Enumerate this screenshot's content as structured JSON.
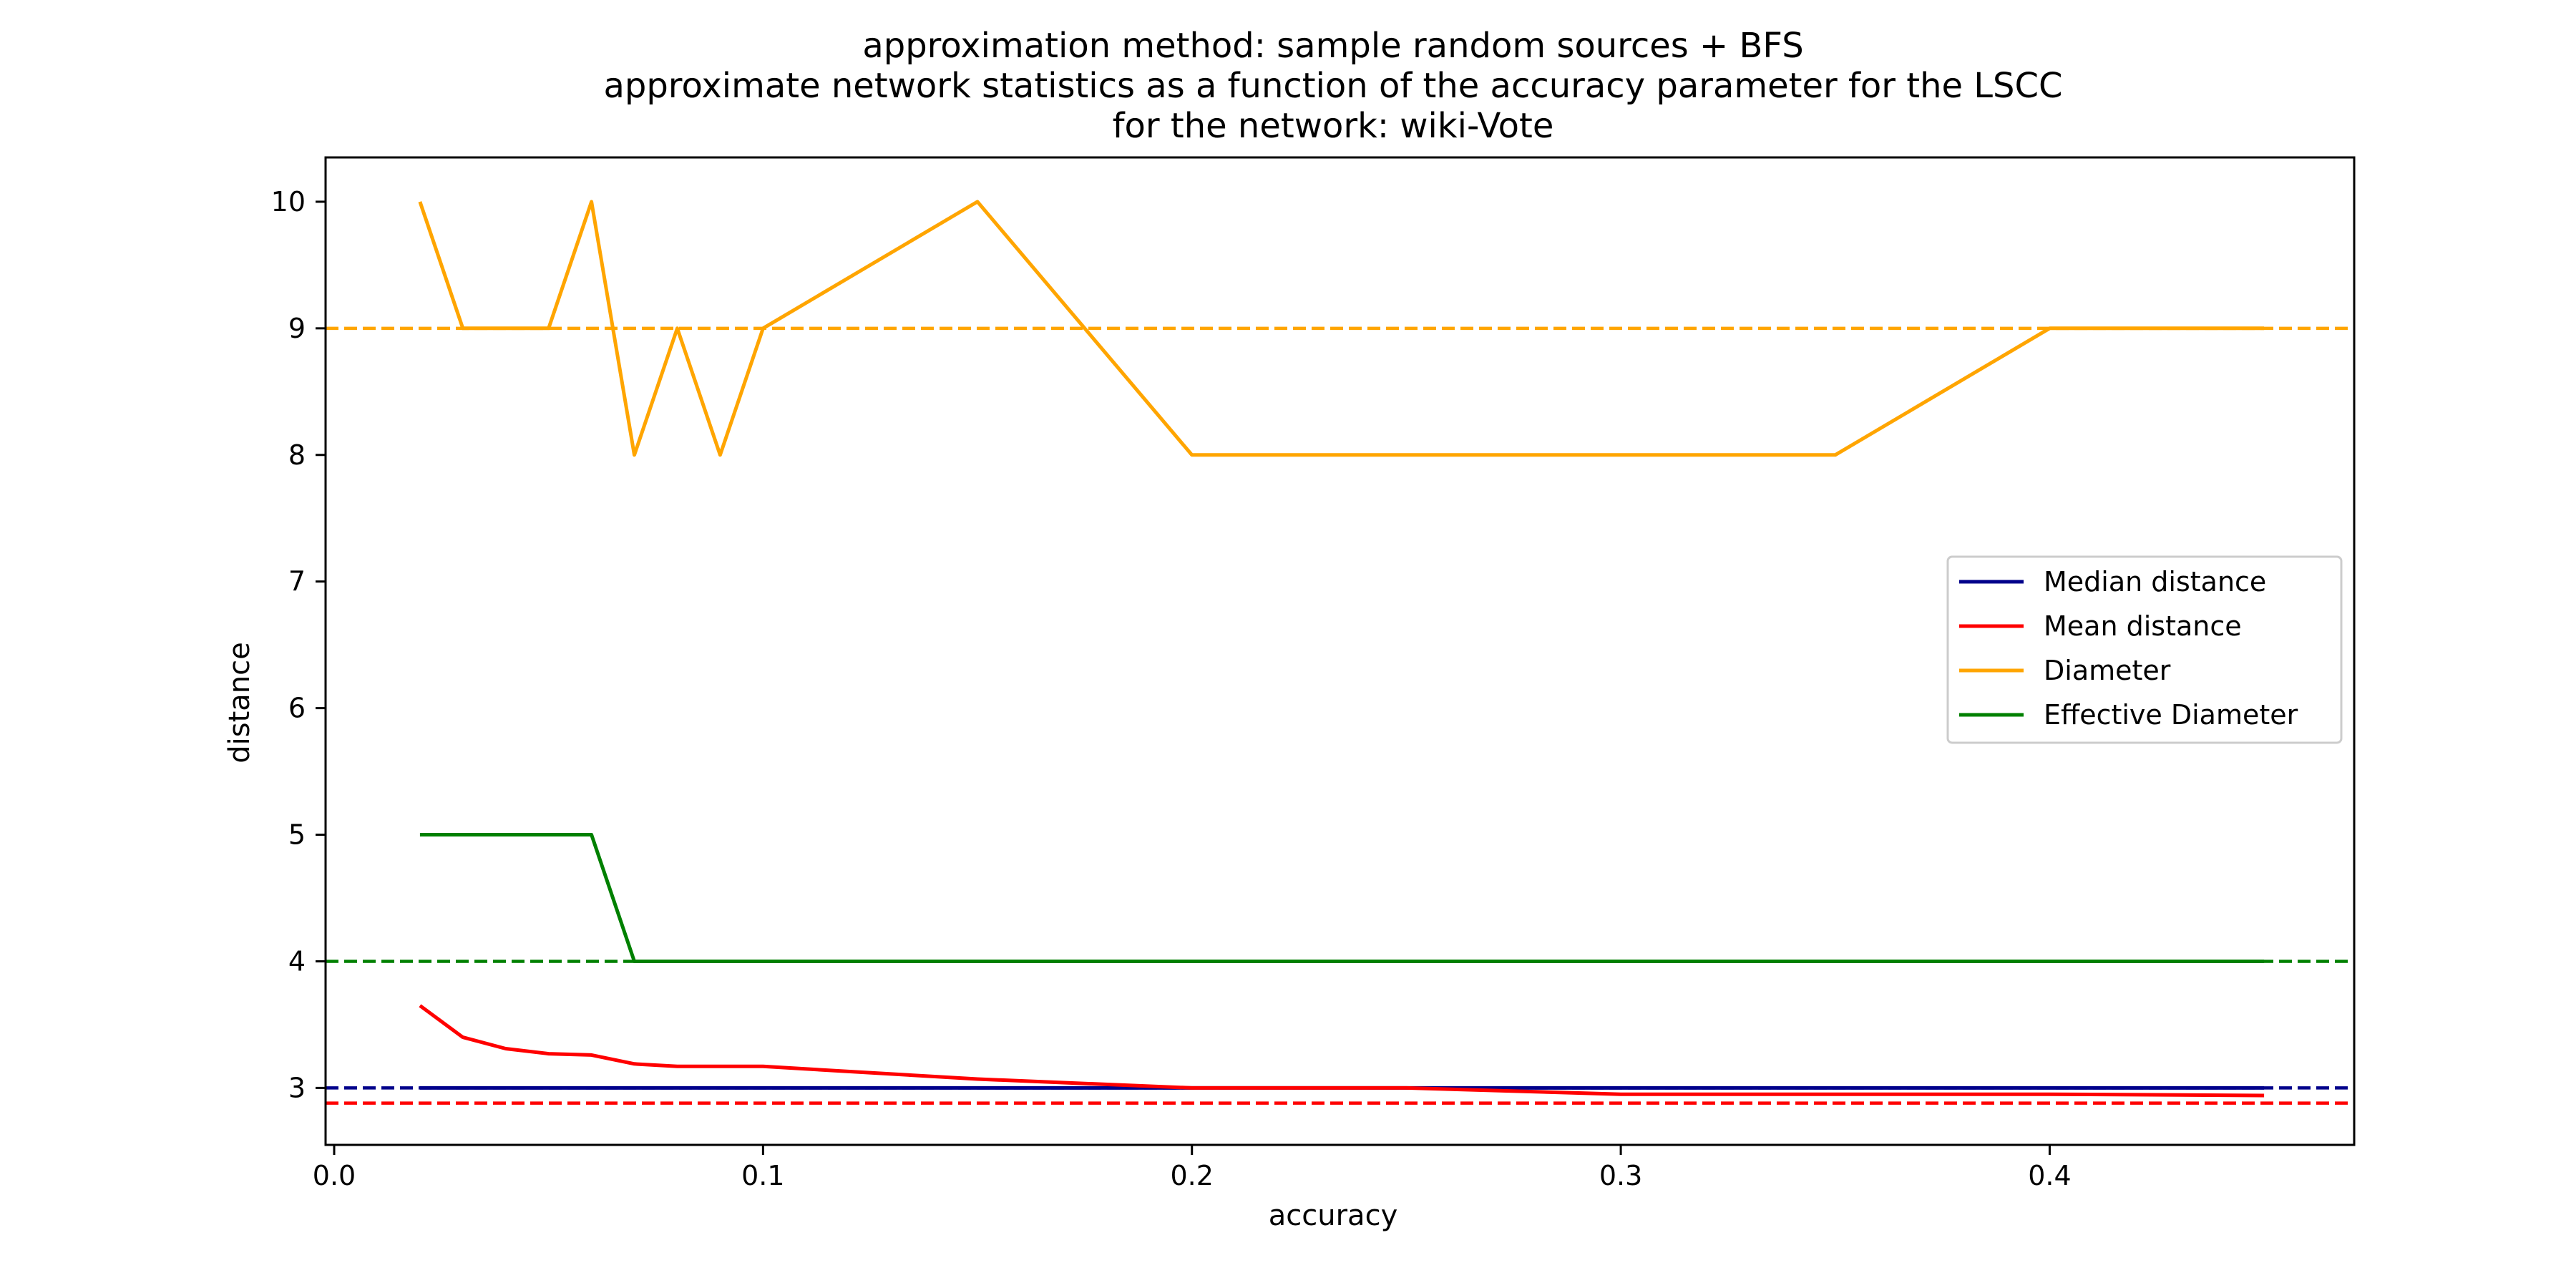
{
  "chart_data": {
    "type": "line",
    "title_lines": [
      "approximation method: sample random sources + BFS",
      "approximate network statistics as a function of the accuracy parameter for  the LSCC",
      "for the network: wiki-Vote"
    ],
    "xlabel": "accuracy",
    "ylabel": "distance",
    "xlim": [
      -0.002,
      0.471
    ],
    "ylim": [
      2.55,
      10.35
    ],
    "xticks": [
      0.0,
      0.1,
      0.2,
      0.3,
      0.4
    ],
    "xtick_labels": [
      "0.0",
      "0.1",
      "0.2",
      "0.3",
      "0.4"
    ],
    "yticks": [
      3,
      4,
      5,
      6,
      7,
      8,
      9,
      10
    ],
    "ytick_labels": [
      "3",
      "4",
      "5",
      "6",
      "7",
      "8",
      "9",
      "10"
    ],
    "grid": false,
    "legend_position": "center-right",
    "x": [
      0.02,
      0.03,
      0.04,
      0.05,
      0.06,
      0.07,
      0.08,
      0.09,
      0.1,
      0.15,
      0.2,
      0.25,
      0.3,
      0.35,
      0.4,
      0.45
    ],
    "series": [
      {
        "name": "Median distance",
        "color": "#00008b",
        "values": [
          3,
          3,
          3,
          3,
          3,
          3,
          3,
          3,
          3,
          3,
          3,
          3,
          3,
          3,
          3,
          3
        ]
      },
      {
        "name": "Mean distance",
        "color": "#ff0000",
        "values": [
          3.65,
          3.4,
          3.31,
          3.27,
          3.26,
          3.19,
          3.17,
          3.17,
          3.17,
          3.07,
          3.0,
          3.0,
          2.95,
          2.95,
          2.95,
          2.94
        ]
      },
      {
        "name": "Diameter",
        "color": "#ffa500",
        "values": [
          10,
          9,
          9,
          9,
          10,
          8,
          9,
          8,
          9,
          10,
          8,
          8,
          8,
          8,
          9,
          9
        ]
      },
      {
        "name": "Effective Diameter",
        "color": "#008000",
        "values": [
          5,
          5,
          5,
          5,
          5,
          4,
          4,
          4,
          4,
          4,
          4,
          4,
          4,
          4,
          4,
          4
        ]
      }
    ],
    "reference_lines": [
      {
        "y": 3.0,
        "color": "#00008b",
        "style": "dashed"
      },
      {
        "y": 2.88,
        "color": "#ff0000",
        "style": "dashed"
      },
      {
        "y": 9.0,
        "color": "#ffa500",
        "style": "dashed"
      },
      {
        "y": 4.0,
        "color": "#008000",
        "style": "dashed"
      }
    ]
  }
}
